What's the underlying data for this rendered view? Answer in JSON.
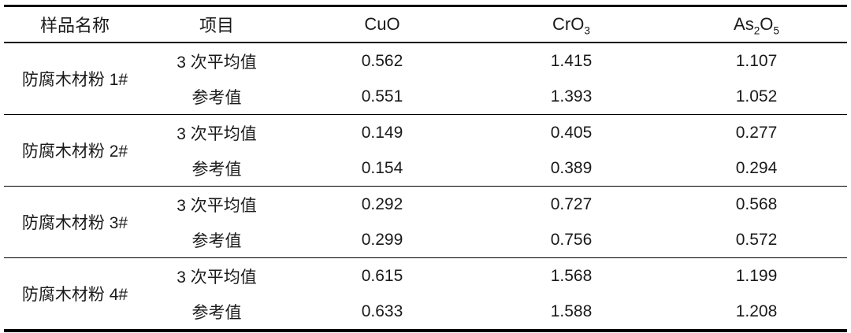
{
  "colors": {
    "text": "#1a1a1a",
    "rule": "#000000",
    "background": "#ffffff"
  },
  "table": {
    "columns": [
      {
        "id": "sample-name",
        "segments": [
          {
            "t": "样品名称"
          }
        ]
      },
      {
        "id": "item",
        "segments": [
          {
            "t": "项目"
          }
        ]
      },
      {
        "id": "cuo",
        "segments": [
          {
            "t": "CuO"
          }
        ]
      },
      {
        "id": "cro3",
        "segments": [
          {
            "t": "CrO"
          },
          {
            "t": "3",
            "sub": true
          }
        ]
      },
      {
        "id": "as2o5",
        "segments": [
          {
            "t": "As"
          },
          {
            "t": "2",
            "sub": true
          },
          {
            "t": "O"
          },
          {
            "t": "5",
            "sub": true
          }
        ]
      }
    ],
    "groups": [
      {
        "sample": "防腐木材粉 1#",
        "rows": [
          {
            "item": "3 次平均值",
            "values": [
              "0.562",
              "1.415",
              "1.107"
            ]
          },
          {
            "item": "参考值",
            "values": [
              "0.551",
              "1.393",
              "1.052"
            ]
          }
        ]
      },
      {
        "sample": "防腐木材粉 2#",
        "rows": [
          {
            "item": "3 次平均值",
            "values": [
              "0.149",
              "0.405",
              "0.277"
            ]
          },
          {
            "item": "参考值",
            "values": [
              "0.154",
              "0.389",
              "0.294"
            ]
          }
        ]
      },
      {
        "sample": "防腐木材粉 3#",
        "rows": [
          {
            "item": "3 次平均值",
            "values": [
              "0.292",
              "0.727",
              "0.568"
            ]
          },
          {
            "item": "参考值",
            "values": [
              "0.299",
              "0.756",
              "0.572"
            ]
          }
        ]
      },
      {
        "sample": "防腐木材粉 4#",
        "rows": [
          {
            "item": "3 次平均值",
            "values": [
              "0.615",
              "1.568",
              "1.199"
            ]
          },
          {
            "item": "参考值",
            "values": [
              "0.633",
              "1.588",
              "1.208"
            ]
          }
        ]
      }
    ]
  }
}
